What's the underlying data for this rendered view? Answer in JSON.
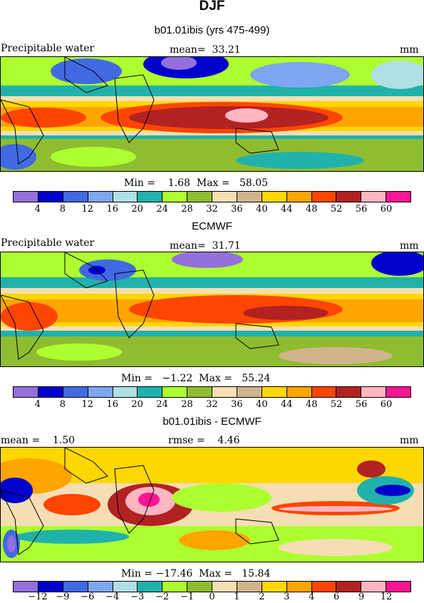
{
  "title": "DJF",
  "colors": [
    "#9370db",
    "#0000cd",
    "#4169e1",
    "#7fa6f0",
    "#b0e0e6",
    "#20b2aa",
    "#adff2f",
    "#8fbc30",
    "#f5deb3",
    "#d2b48c",
    "#ffd700",
    "#ffa500",
    "#ff4500",
    "#b22222",
    "#ffb6c1",
    "#ff1493"
  ],
  "panels": [
    {
      "subtitle": "b01.01ibis (yrs 475-499)",
      "left_label": "Precipitable water",
      "mid_label": "mean=  33.21",
      "right_label": "mm",
      "minmax": "Min =    1.68  Max =   58.05",
      "ticks": [
        "4",
        "8",
        "12",
        "16",
        "20",
        "24",
        "28",
        "32",
        "36",
        "40",
        "44",
        "48",
        "52",
        "56",
        "60"
      ]
    },
    {
      "subtitle": "ECMWF",
      "left_label": "Precipitable water",
      "mid_label": "mean=  31.71",
      "right_label": "mm",
      "minmax": "Min =   −1.22  Max =   55.24",
      "ticks": [
        "4",
        "8",
        "12",
        "16",
        "20",
        "24",
        "28",
        "32",
        "36",
        "40",
        "44",
        "48",
        "52",
        "56",
        "60"
      ]
    },
    {
      "subtitle": "b01.01ibis - ECMWF",
      "left_label": "mean =    1.50",
      "mid_label": "rmse =    4.46",
      "right_label": "mm",
      "minmax": "Min = −17.46  Max =   15.84",
      "ticks": [
        "−12",
        "−9",
        "−6",
        "−4",
        "−3",
        "−2",
        "−1",
        "0",
        "1",
        "2",
        "3",
        "4",
        "6",
        "9",
        "12"
      ]
    }
  ]
}
